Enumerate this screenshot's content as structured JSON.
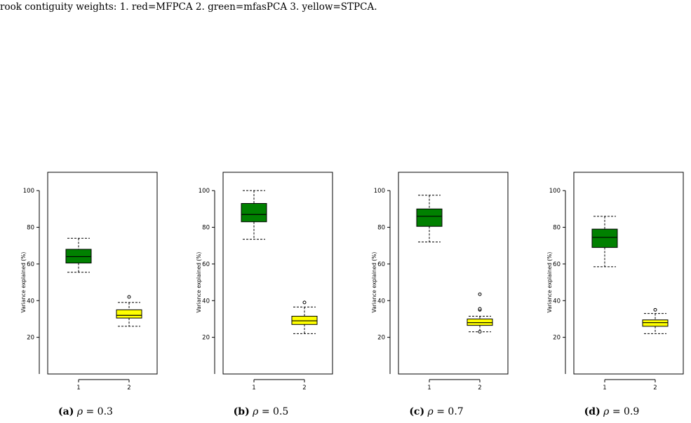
{
  "caption_top": "rook contiguity weights: 1. red=MFPCA 2. green=mfasPCA 3. yellow=STPCA.",
  "colors": {
    "box1": "#008000",
    "box2": "#ffff00",
    "stroke": "#000000"
  },
  "chart_data": [
    {
      "type": "box",
      "ylabel": "Variance explained (%)",
      "categories": [
        "1",
        "2"
      ],
      "ylim": [
        0,
        110
      ],
      "yticks": [
        "20",
        "40",
        "60",
        "80",
        "100"
      ],
      "boxes": [
        {
          "category": "1",
          "whisker_low": 55.5,
          "q1": 60.5,
          "median": 64,
          "q3": 68,
          "whisker_high": 74,
          "outliers": []
        },
        {
          "category": "2",
          "whisker_low": 26,
          "q1": 30.5,
          "median": 32,
          "q3": 35,
          "whisker_high": 39,
          "outliers": [
            42
          ]
        }
      ],
      "caption": {
        "label": "(a)",
        "symbol": "ρ",
        "rest": " = 0.3"
      }
    },
    {
      "type": "box",
      "ylabel": "Variance explained (%)",
      "categories": [
        "1",
        "2"
      ],
      "ylim": [
        0,
        110
      ],
      "yticks": [
        "20",
        "40",
        "60",
        "80",
        "100"
      ],
      "boxes": [
        {
          "category": "1",
          "whisker_low": 73.5,
          "q1": 83,
          "median": 87,
          "q3": 93,
          "whisker_high": 100,
          "outliers": []
        },
        {
          "category": "2",
          "whisker_low": 22,
          "q1": 27,
          "median": 29,
          "q3": 31.5,
          "whisker_high": 36.5,
          "outliers": [
            39
          ]
        }
      ],
      "caption": {
        "label": "(b)",
        "symbol": "ρ",
        "rest": " = 0.5"
      }
    },
    {
      "type": "box",
      "ylabel": "Variance explained (%)",
      "categories": [
        "1",
        "2"
      ],
      "ylim": [
        0,
        110
      ],
      "yticks": [
        "20",
        "40",
        "60",
        "80",
        "100"
      ],
      "boxes": [
        {
          "category": "1",
          "whisker_low": 72,
          "q1": 80.5,
          "median": 86,
          "q3": 90,
          "whisker_high": 97.5,
          "outliers": []
        },
        {
          "category": "2",
          "whisker_low": 23,
          "q1": 26.5,
          "median": 28,
          "q3": 30,
          "whisker_high": 31.5,
          "outliers": [
            23,
            35,
            35.5,
            43.5
          ]
        }
      ],
      "caption": {
        "label": "(c)",
        "symbol": "ρ",
        "rest": " = 0.7"
      }
    },
    {
      "type": "box",
      "ylabel": "Variance explained (%)",
      "categories": [
        "1",
        "2"
      ],
      "ylim": [
        0,
        110
      ],
      "yticks": [
        "20",
        "40",
        "60",
        "80",
        "100"
      ],
      "boxes": [
        {
          "category": "1",
          "whisker_low": 58.5,
          "q1": 69,
          "median": 74.5,
          "q3": 79,
          "whisker_high": 86,
          "outliers": []
        },
        {
          "category": "2",
          "whisker_low": 22,
          "q1": 26,
          "median": 28,
          "q3": 29.5,
          "whisker_high": 33,
          "outliers": [
            35
          ]
        }
      ],
      "caption": {
        "label": "(d)",
        "symbol": "ρ",
        "rest": " = 0.9"
      }
    }
  ]
}
